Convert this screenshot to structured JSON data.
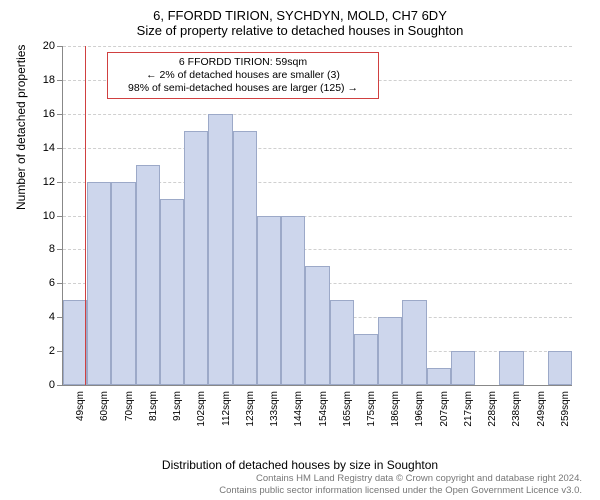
{
  "title_main": "6, FFORDD TIRION, SYCHDYN, MOLD, CH7 6DY",
  "title_sub": "Size of property relative to detached houses in Soughton",
  "ylabel": "Number of detached properties",
  "xlabel": "Distribution of detached houses by size in Soughton",
  "chart": {
    "type": "histogram",
    "ylim": [
      0,
      20
    ],
    "ytick_step": 2,
    "categories": [
      "49sqm",
      "60sqm",
      "70sqm",
      "81sqm",
      "91sqm",
      "102sqm",
      "112sqm",
      "123sqm",
      "133sqm",
      "144sqm",
      "154sqm",
      "165sqm",
      "175sqm",
      "186sqm",
      "196sqm",
      "207sqm",
      "217sqm",
      "228sqm",
      "238sqm",
      "249sqm",
      "259sqm"
    ],
    "values": [
      5,
      12,
      12,
      13,
      11,
      15,
      16,
      15,
      10,
      10,
      7,
      5,
      3,
      4,
      5,
      1,
      2,
      0,
      2,
      0,
      2
    ],
    "bar_fill": "#cdd6ec",
    "bar_stroke": "#9ca9c8",
    "grid_color": "#d0d0d0",
    "axis_color": "#888888",
    "background_color": "#ffffff",
    "refline_value": "59sqm",
    "refline_color": "#d04040",
    "label_fontsize": 12,
    "tick_fontsize": 11,
    "title_fontsize": 13
  },
  "annotation": {
    "line1": "6 FFORDD TIRION: 59sqm",
    "line2": "← 2% of detached houses are smaller (3)",
    "line3": "98% of semi-detached houses are larger (125) →",
    "border_color": "#d04040",
    "bg_color": "#ffffff",
    "fontsize": 10.5
  },
  "footer": {
    "line1": "Contains HM Land Registry data © Crown copyright and database right 2024.",
    "line2": "Contains public sector information licensed under the Open Government Licence v3.0.",
    "color": "#777777",
    "fontsize": 9.5
  }
}
